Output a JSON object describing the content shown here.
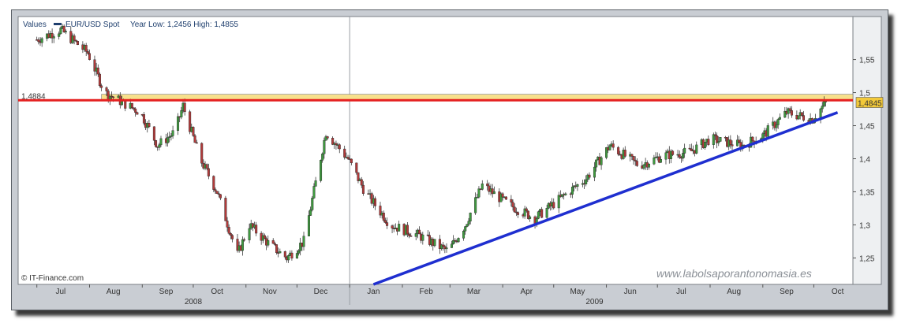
{
  "legend": {
    "values_label": "Values",
    "series_name": "EUR/USD Spot",
    "year_range": "Year Low: 1,2456 High: 1,4855"
  },
  "source_label": "© IT-Finance.com",
  "watermark": "www.labolsaporantonomasia.es",
  "colors": {
    "up": "#3f9a3f",
    "down": "#b23a3a",
    "resistance": "#e52020",
    "trendline": "#1f2fd0",
    "band": "#f7e08c",
    "price_tag": "#f2c93a"
  },
  "chart_data": {
    "type": "candlestick",
    "title": "",
    "series_name": "EUR/USD Spot",
    "ylim": [
      1.21,
      1.615
    ],
    "y_ticks": [
      "1,25",
      "1,3",
      "1,35",
      "1,4",
      "1,45",
      "1,5",
      "1,55"
    ],
    "y_tick_values": [
      1.25,
      1.3,
      1.35,
      1.4,
      1.45,
      1.5,
      1.55
    ],
    "x_months": [
      "Jul",
      "Aug",
      "Sep",
      "Oct",
      "Nov",
      "Dec",
      "Jan",
      "Feb",
      "Mar",
      "Apr",
      "May",
      "Jun",
      "Jul",
      "Aug",
      "Sep",
      "Oct"
    ],
    "years": [
      "2008",
      "2009"
    ],
    "close_path": [
      [
        "2008-07-01",
        1.58
      ],
      [
        "2008-07-15",
        1.595
      ],
      [
        "2008-07-31",
        1.56
      ],
      [
        "2008-08-10",
        1.5
      ],
      [
        "2008-08-31",
        1.47
      ],
      [
        "2008-09-10",
        1.42
      ],
      [
        "2008-09-20",
        1.44
      ],
      [
        "2008-09-25",
        1.48
      ],
      [
        "2008-10-05",
        1.4
      ],
      [
        "2008-10-15",
        1.35
      ],
      [
        "2008-10-27",
        1.255
      ],
      [
        "2008-11-03",
        1.3
      ],
      [
        "2008-11-15",
        1.27
      ],
      [
        "2008-11-25",
        1.25
      ],
      [
        "2008-12-05",
        1.275
      ],
      [
        "2008-12-18",
        1.44
      ],
      [
        "2008-12-31",
        1.4
      ],
      [
        "2009-01-10",
        1.35
      ],
      [
        "2009-01-25",
        1.3
      ],
      [
        "2009-02-10",
        1.285
      ],
      [
        "2009-02-28",
        1.26
      ],
      [
        "2009-03-10",
        1.3
      ],
      [
        "2009-03-20",
        1.36
      ],
      [
        "2009-04-05",
        1.33
      ],
      [
        "2009-04-20",
        1.31
      ],
      [
        "2009-05-05",
        1.34
      ],
      [
        "2009-05-20",
        1.37
      ],
      [
        "2009-06-03",
        1.42
      ],
      [
        "2009-06-20",
        1.39
      ],
      [
        "2009-07-05",
        1.405
      ],
      [
        "2009-07-20",
        1.41
      ],
      [
        "2009-08-01",
        1.43
      ],
      [
        "2009-08-20",
        1.42
      ],
      [
        "2009-09-01",
        1.435
      ],
      [
        "2009-09-15",
        1.47
      ],
      [
        "2009-09-30",
        1.46
      ],
      [
        "2009-10-08",
        1.4845
      ]
    ],
    "annotations": {
      "resistance": {
        "label": "1,4884",
        "value": 1.4884
      },
      "band": [
        1.4884,
        1.4975
      ],
      "last_price": {
        "label": "1,4845",
        "value": 1.4845
      },
      "trendline": [
        [
          "2009-01-15",
          1.21
        ],
        [
          "2009-10-15",
          1.47
        ]
      ]
    }
  }
}
